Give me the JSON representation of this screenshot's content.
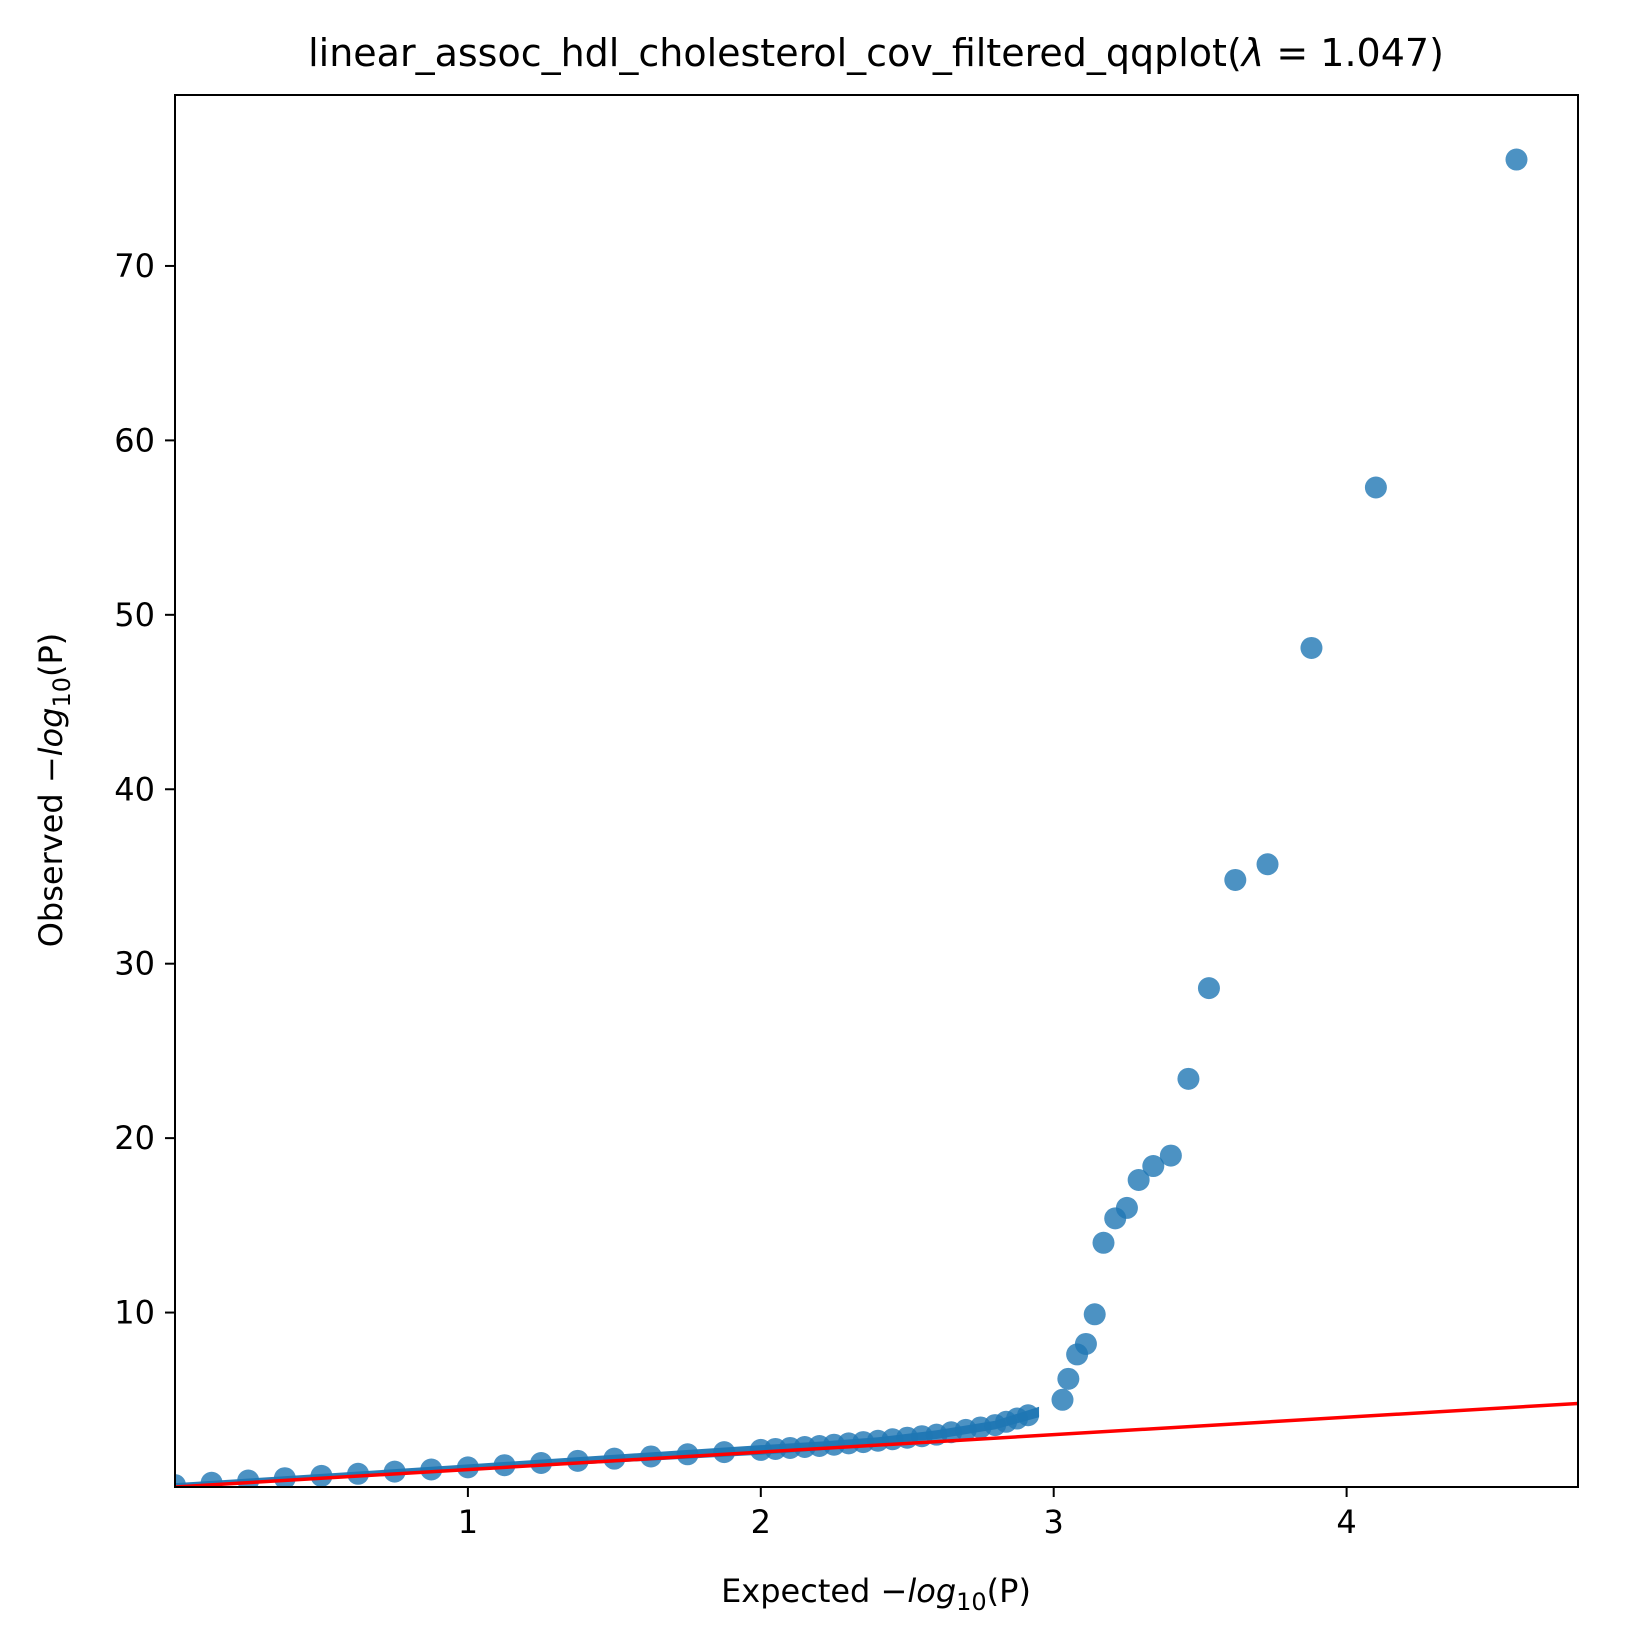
{
  "chart_data": {
    "type": "scatter",
    "title": {
      "prefix": "linear_assoc_hdl_cholesterol_cov_filtered_qqplot(",
      "lambda_symbol": "λ",
      "equals": " = ",
      "lambda_value": "1.047",
      "suffix": ")"
    },
    "xlabel": {
      "prefix": "Expected ",
      "minus": "−",
      "log": "log",
      "sub": "10",
      "arg": "(P)"
    },
    "ylabel": {
      "prefix": "Observed ",
      "minus": "−",
      "log": "log",
      "sub": "10",
      "arg": "(P)"
    },
    "xlim": [
      0,
      4.79
    ],
    "ylim": [
      0,
      79.8
    ],
    "xticks": [
      1,
      2,
      3,
      4
    ],
    "xtick_labels": [
      "1",
      "2",
      "3",
      "4"
    ],
    "yticks": [
      10,
      20,
      30,
      40,
      50,
      60,
      70
    ],
    "ytick_labels": [
      "10",
      "20",
      "30",
      "40",
      "50",
      "60",
      "70"
    ],
    "grid": false,
    "colors": {
      "points": "#1f77b4",
      "reference_line": "#ff0000"
    },
    "reference_line": {
      "x": [
        0,
        4.79
      ],
      "y": [
        0,
        4.79
      ]
    },
    "series": [
      {
        "bulk_band": [
          [
            0.0,
            0.0,
            0.22
          ],
          [
            0.5,
            0.52,
            0.75
          ],
          [
            1.0,
            0.95,
            1.3
          ],
          [
            1.5,
            1.4,
            1.85
          ],
          [
            2.0,
            1.85,
            2.4
          ],
          [
            2.2,
            2.1,
            2.6
          ],
          [
            2.4,
            2.45,
            2.85
          ],
          [
            2.6,
            2.75,
            3.25
          ],
          [
            2.8,
            3.3,
            3.8
          ],
          [
            2.95,
            4.0,
            4.6
          ]
        ],
        "points": [
          [
            3.03,
            5.0
          ],
          [
            3.05,
            6.2
          ],
          [
            3.08,
            7.6
          ],
          [
            3.11,
            8.2
          ],
          [
            3.14,
            9.9
          ],
          [
            3.17,
            14.0
          ],
          [
            3.21,
            15.4
          ],
          [
            3.25,
            16.0
          ],
          [
            3.29,
            17.6
          ],
          [
            3.34,
            18.4
          ],
          [
            3.4,
            19.0
          ],
          [
            3.46,
            23.4
          ],
          [
            3.53,
            28.6
          ],
          [
            3.62,
            34.8
          ],
          [
            3.73,
            35.7
          ],
          [
            3.88,
            48.1
          ],
          [
            4.1,
            57.3
          ],
          [
            4.58,
            76.1
          ]
        ]
      }
    ]
  }
}
